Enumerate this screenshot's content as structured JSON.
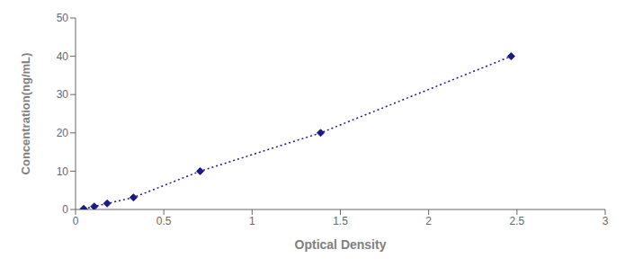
{
  "chart_data": {
    "type": "line",
    "x": [
      0.046,
      0.106,
      0.179,
      0.328,
      0.706,
      1.388,
      2.467
    ],
    "values": [
      0.156,
      0.78,
      1.563,
      3.125,
      10.0,
      20.0,
      40.0
    ],
    "color": "#1a1a8c",
    "marker": "diamond",
    "line_style": "dotted",
    "xlabel": "Optical Density",
    "ylabel": "Concentration(ng/mL)",
    "xlim": [
      0,
      3
    ],
    "ylim": [
      0,
      50
    ],
    "xticks": [
      0,
      0.5,
      1,
      1.5,
      2,
      2.5,
      3
    ],
    "yticks": [
      0,
      10,
      20,
      30,
      40,
      50
    ],
    "grid": false
  }
}
